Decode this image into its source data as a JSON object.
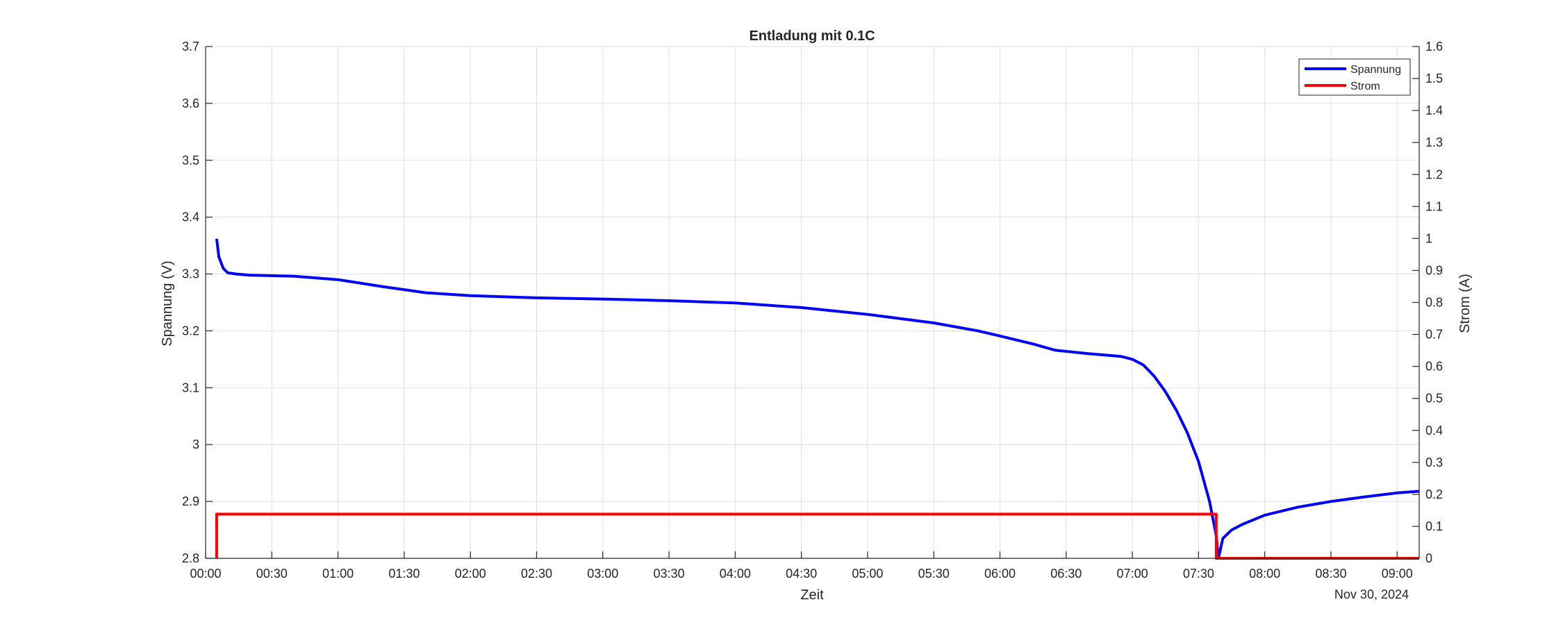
{
  "chart_data": {
    "type": "line",
    "title": "Entladung mit 0.1C",
    "xlabel": "Zeit",
    "x_date_label": "Nov 30, 2024",
    "ylabel_left": "Spannung (V)",
    "ylabel_right": "Strom (A)",
    "xlim": [
      "00:00",
      "09:10"
    ],
    "ylim_left": [
      2.8,
      3.7
    ],
    "ylim_right": [
      0,
      1.6
    ],
    "x_ticks": [
      "00:00",
      "00:30",
      "01:00",
      "01:30",
      "02:00",
      "02:30",
      "03:00",
      "03:30",
      "04:00",
      "04:30",
      "05:00",
      "05:30",
      "06:00",
      "06:30",
      "07:00",
      "07:30",
      "08:00",
      "08:30",
      "09:00"
    ],
    "y_ticks_left": [
      "2.8",
      "2.9",
      "3",
      "3.1",
      "3.2",
      "3.3",
      "3.4",
      "3.5",
      "3.6",
      "3.7"
    ],
    "y_ticks_right": [
      "0",
      "0.1",
      "0.2",
      "0.3",
      "0.4",
      "0.5",
      "0.6",
      "0.7",
      "0.8",
      "0.9",
      "1",
      "1.1",
      "1.2",
      "1.3",
      "1.4",
      "1.5",
      "1.6"
    ],
    "grid": true,
    "legend_position": "top-right",
    "series": [
      {
        "name": "Spannung",
        "axis": "left",
        "color": "#0000ff",
        "x": [
          "00:05",
          "00:06",
          "00:08",
          "00:10",
          "00:14",
          "00:20",
          "00:40",
          "01:00",
          "01:20",
          "01:40",
          "02:00",
          "02:30",
          "03:00",
          "03:30",
          "04:00",
          "04:30",
          "05:00",
          "05:30",
          "05:50",
          "06:00",
          "06:15",
          "06:25",
          "06:40",
          "06:55",
          "07:00",
          "07:05",
          "07:10",
          "07:15",
          "07:20",
          "07:25",
          "07:30",
          "07:35",
          "07:38",
          "07:39",
          "07:41",
          "07:45",
          "07:50",
          "08:00",
          "08:15",
          "08:30",
          "08:45",
          "09:00",
          "09:10"
        ],
        "values": [
          3.362,
          3.33,
          3.31,
          3.302,
          3.3,
          3.298,
          3.296,
          3.29,
          3.278,
          3.267,
          3.262,
          3.258,
          3.256,
          3.253,
          3.249,
          3.241,
          3.229,
          3.214,
          3.2,
          3.191,
          3.177,
          3.166,
          3.16,
          3.155,
          3.15,
          3.14,
          3.12,
          3.093,
          3.06,
          3.02,
          2.97,
          2.9,
          2.84,
          2.8,
          2.835,
          2.85,
          2.86,
          2.876,
          2.89,
          2.9,
          2.908,
          2.915,
          2.918
        ]
      },
      {
        "name": "Strom",
        "axis": "right",
        "color": "#ff0000",
        "x": [
          "00:05",
          "00:05",
          "07:38",
          "07:38",
          "09:10"
        ],
        "values": [
          0,
          0.138,
          0.138,
          0,
          0
        ]
      }
    ]
  }
}
